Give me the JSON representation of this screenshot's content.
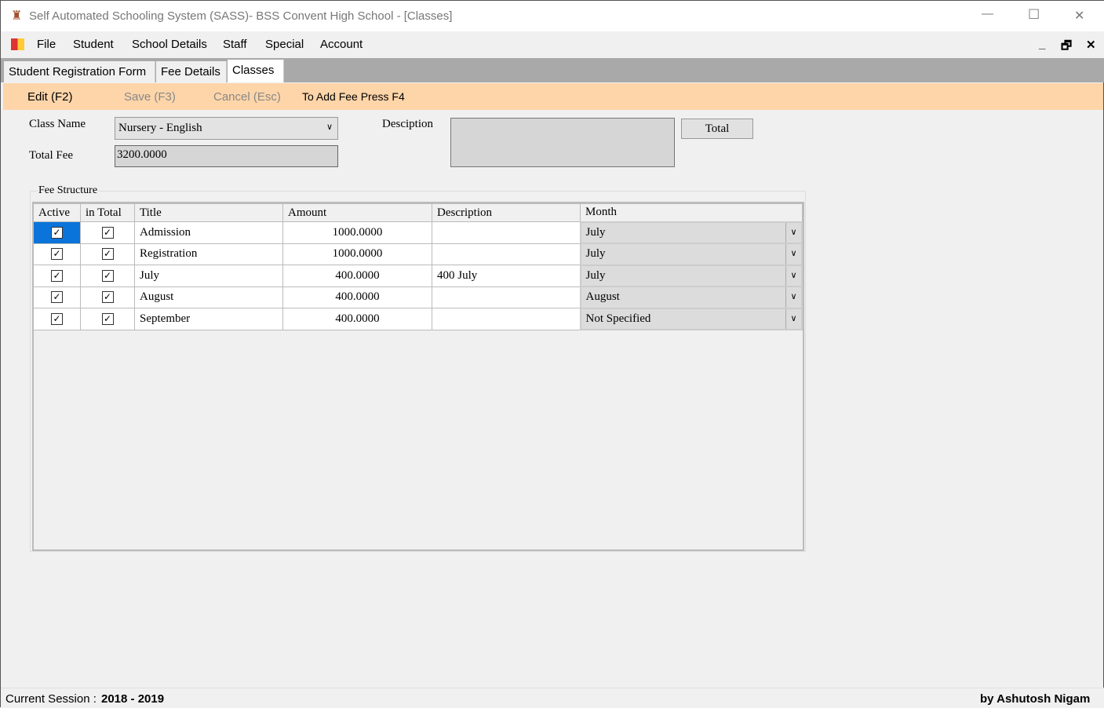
{
  "window": {
    "title": "Self Automated Schooling System (SASS)- BSS Convent High School - [Classes]",
    "minimize": "—",
    "maximize": "☐",
    "close": "✕"
  },
  "menu": [
    "File",
    "Student",
    "School Details",
    "Staff",
    "Special",
    "Account"
  ],
  "mdi": {
    "min": "_",
    "restore": "🗗",
    "close": "✕"
  },
  "tabs": [
    "Student Registration Form",
    "Fee Details",
    "Classes"
  ],
  "toolbar": {
    "edit": "Edit (F2)",
    "save": "Save (F3)",
    "cancel": "Cancel (Esc)",
    "hint": "To Add Fee Press F4"
  },
  "form": {
    "class_name_label": "Class Name",
    "class_name": "Nursery - English",
    "total_fee_label": "Total Fee",
    "total_fee": "3200.0000",
    "description_label": "Desciption",
    "description": "",
    "total_button": "Total"
  },
  "fee_structure": {
    "label": "Fee Structure",
    "columns": [
      "Active",
      "in Total",
      "Title",
      "Amount",
      "Description",
      "Month"
    ],
    "rows": [
      {
        "active": true,
        "in_total": true,
        "title": "Admission",
        "amount": "1000.0000",
        "description": "",
        "month": "July"
      },
      {
        "active": true,
        "in_total": true,
        "title": "Registration",
        "amount": "1000.0000",
        "description": "",
        "month": "July"
      },
      {
        "active": true,
        "in_total": true,
        "title": "July",
        "amount": "400.0000",
        "description": "400 July",
        "month": "July"
      },
      {
        "active": true,
        "in_total": true,
        "title": "August",
        "amount": "400.0000",
        "description": "",
        "month": "August"
      },
      {
        "active": true,
        "in_total": true,
        "title": "September",
        "amount": "400.0000",
        "description": "",
        "month": "Not Specified"
      }
    ]
  },
  "status": {
    "session_label": "Current Session :",
    "session": "2018 - 2019",
    "author": "by Ashutosh Nigam"
  }
}
